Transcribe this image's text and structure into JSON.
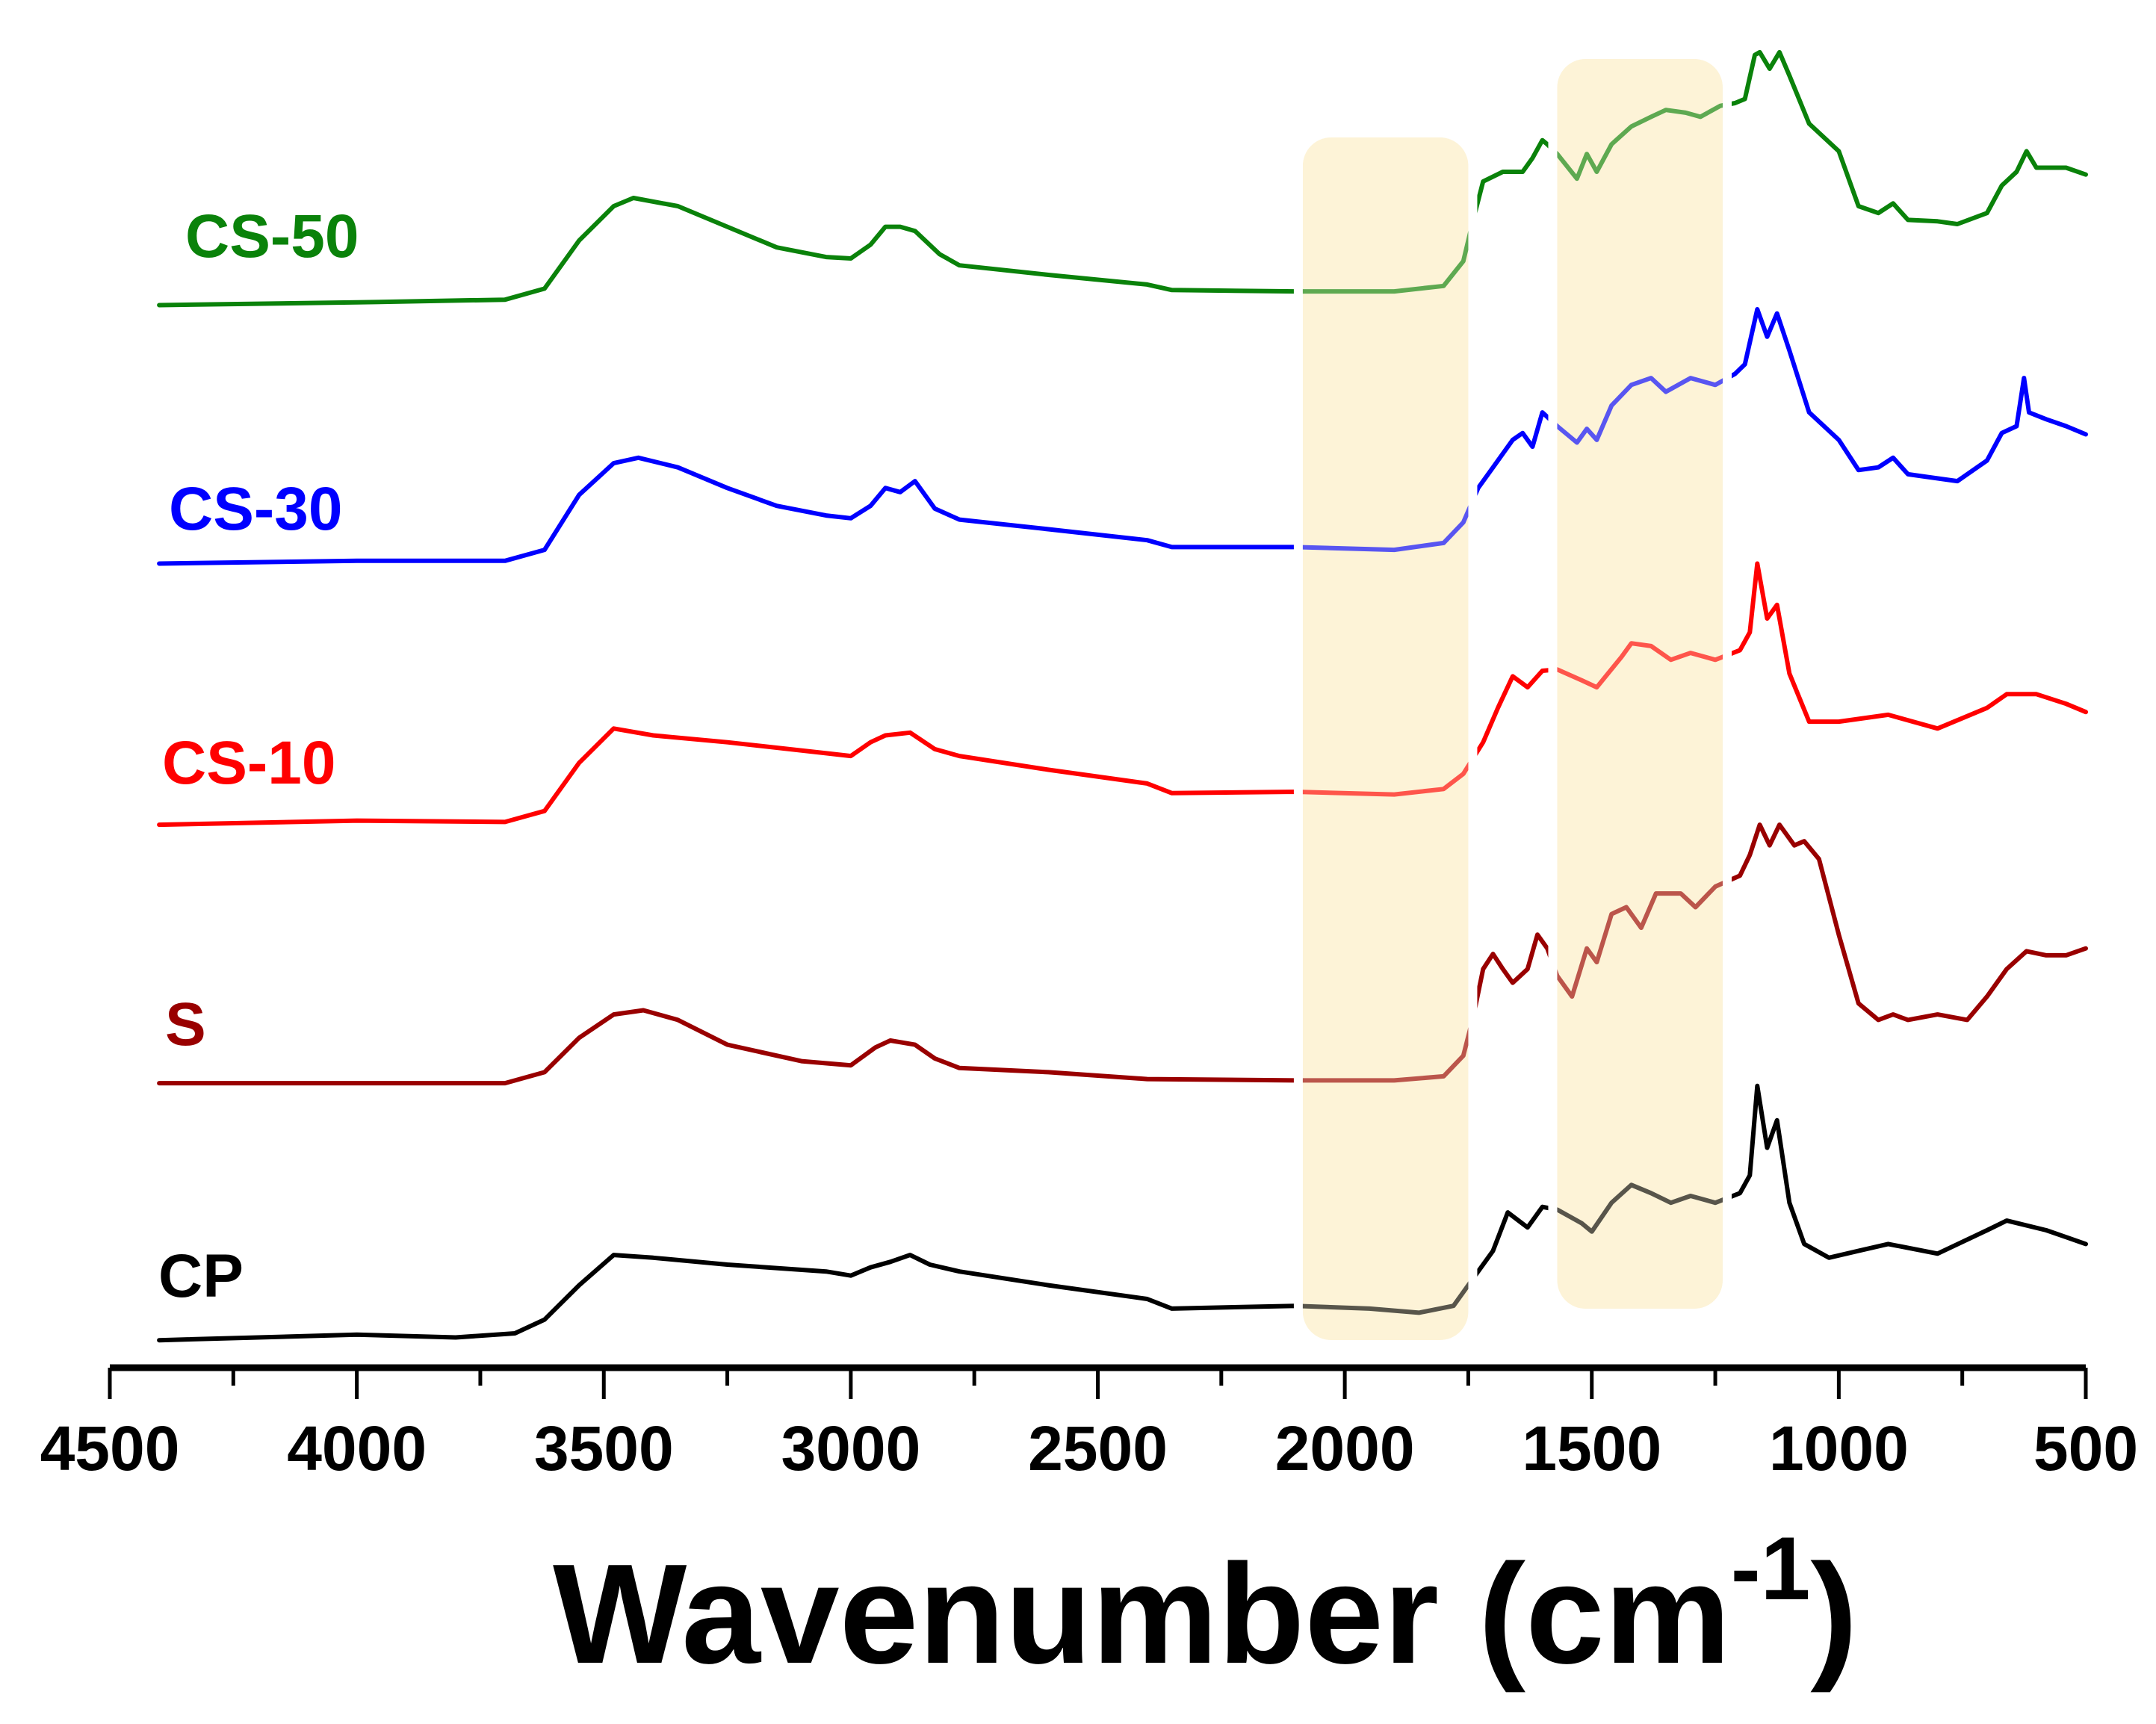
{
  "chart_data": {
    "type": "line",
    "title": "",
    "xlabel": "Wavenumber (cm",
    "xlabel_sup": "-1",
    "xlabel_close": ")",
    "ylabel": "",
    "xlim": [
      4500,
      500
    ],
    "ylim": [
      5,
      1000
    ],
    "x_ticks": [
      "4500",
      "4000",
      "3500",
      "3000",
      "2500",
      "2000",
      "1500",
      "1000",
      "500"
    ],
    "x_tick_values": [
      4500,
      4000,
      3500,
      3000,
      2500,
      2000,
      1500,
      1000,
      500
    ],
    "x_minor_ticks": [
      4250,
      3750,
      3250,
      2750,
      2250,
      1750,
      1250,
      750
    ],
    "grid": false,
    "highlight_regions": [
      {
        "from": 2085,
        "to": 1750,
        "color": "#fdf3d8"
      },
      {
        "from": 1570,
        "to": 1235,
        "color": "#fdf3d8"
      }
    ],
    "series": [
      {
        "name": "CS-50",
        "color": "#0a820a",
        "points": [
          [
            4400,
            778
          ],
          [
            4000,
            780
          ],
          [
            3700,
            782
          ],
          [
            3620,
            790
          ],
          [
            3550,
            825
          ],
          [
            3480,
            850
          ],
          [
            3440,
            856
          ],
          [
            3350,
            850
          ],
          [
            3250,
            835
          ],
          [
            3150,
            820
          ],
          [
            3050,
            813
          ],
          [
            3000,
            812
          ],
          [
            2960,
            822
          ],
          [
            2930,
            835
          ],
          [
            2900,
            835
          ],
          [
            2870,
            832
          ],
          [
            2820,
            815
          ],
          [
            2780,
            807
          ],
          [
            2600,
            800
          ],
          [
            2400,
            793
          ],
          [
            2350,
            789
          ],
          [
            2100,
            788
          ],
          [
            1900,
            788
          ],
          [
            1800,
            792
          ],
          [
            1760,
            810
          ],
          [
            1740,
            840
          ],
          [
            1720,
            868
          ],
          [
            1680,
            875
          ],
          [
            1640,
            875
          ],
          [
            1620,
            885
          ],
          [
            1600,
            898
          ],
          [
            1590,
            895
          ],
          [
            1570,
            888
          ],
          [
            1530,
            870
          ],
          [
            1510,
            888
          ],
          [
            1490,
            875
          ],
          [
            1460,
            895
          ],
          [
            1420,
            908
          ],
          [
            1380,
            915
          ],
          [
            1350,
            920
          ],
          [
            1310,
            918
          ],
          [
            1280,
            915
          ],
          [
            1240,
            923
          ],
          [
            1210,
            925
          ],
          [
            1190,
            928
          ],
          [
            1170,
            960
          ],
          [
            1160,
            962
          ],
          [
            1140,
            950
          ],
          [
            1120,
            962
          ],
          [
            1100,
            945
          ],
          [
            1060,
            910
          ],
          [
            1000,
            890
          ],
          [
            960,
            850
          ],
          [
            920,
            845
          ],
          [
            890,
            852
          ],
          [
            860,
            840
          ],
          [
            800,
            839
          ],
          [
            760,
            837
          ],
          [
            700,
            845
          ],
          [
            670,
            865
          ],
          [
            640,
            875
          ],
          [
            620,
            890
          ],
          [
            600,
            878
          ],
          [
            540,
            878
          ],
          [
            500,
            873
          ]
        ]
      },
      {
        "name": "CS-30",
        "color": "#0000ff",
        "points": [
          [
            4400,
            590
          ],
          [
            4000,
            592
          ],
          [
            3700,
            592
          ],
          [
            3620,
            600
          ],
          [
            3550,
            640
          ],
          [
            3480,
            663
          ],
          [
            3430,
            667
          ],
          [
            3350,
            660
          ],
          [
            3250,
            645
          ],
          [
            3150,
            632
          ],
          [
            3050,
            625
          ],
          [
            3000,
            623
          ],
          [
            2960,
            632
          ],
          [
            2930,
            645
          ],
          [
            2900,
            642
          ],
          [
            2870,
            650
          ],
          [
            2830,
            630
          ],
          [
            2780,
            622
          ],
          [
            2600,
            615
          ],
          [
            2400,
            607
          ],
          [
            2350,
            602
          ],
          [
            2100,
            602
          ],
          [
            1900,
            600
          ],
          [
            1800,
            605
          ],
          [
            1760,
            620
          ],
          [
            1730,
            645
          ],
          [
            1700,
            660
          ],
          [
            1660,
            680
          ],
          [
            1640,
            685
          ],
          [
            1620,
            675
          ],
          [
            1600,
            700
          ],
          [
            1570,
            690
          ],
          [
            1530,
            678
          ],
          [
            1510,
            688
          ],
          [
            1490,
            680
          ],
          [
            1460,
            705
          ],
          [
            1420,
            720
          ],
          [
            1380,
            725
          ],
          [
            1350,
            715
          ],
          [
            1300,
            725
          ],
          [
            1250,
            720
          ],
          [
            1210,
            728
          ],
          [
            1190,
            735
          ],
          [
            1165,
            775
          ],
          [
            1145,
            755
          ],
          [
            1125,
            772
          ],
          [
            1100,
            745
          ],
          [
            1060,
            700
          ],
          [
            1000,
            680
          ],
          [
            960,
            658
          ],
          [
            920,
            660
          ],
          [
            890,
            667
          ],
          [
            860,
            655
          ],
          [
            760,
            650
          ],
          [
            700,
            665
          ],
          [
            670,
            685
          ],
          [
            640,
            690
          ],
          [
            625,
            725
          ],
          [
            615,
            700
          ],
          [
            580,
            695
          ],
          [
            540,
            690
          ],
          [
            500,
            684
          ]
        ]
      },
      {
        "name": "CS-10",
        "color": "#ff0000",
        "points": [
          [
            4400,
            400
          ],
          [
            4000,
            403
          ],
          [
            3700,
            402
          ],
          [
            3620,
            410
          ],
          [
            3550,
            445
          ],
          [
            3480,
            470
          ],
          [
            3400,
            465
          ],
          [
            3250,
            460
          ],
          [
            3050,
            452
          ],
          [
            3000,
            450
          ],
          [
            2960,
            460
          ],
          [
            2930,
            465
          ],
          [
            2880,
            467
          ],
          [
            2830,
            455
          ],
          [
            2780,
            450
          ],
          [
            2600,
            440
          ],
          [
            2400,
            430
          ],
          [
            2350,
            423
          ],
          [
            2100,
            424
          ],
          [
            1900,
            422
          ],
          [
            1800,
            426
          ],
          [
            1760,
            437
          ],
          [
            1720,
            460
          ],
          [
            1690,
            485
          ],
          [
            1660,
            508
          ],
          [
            1630,
            500
          ],
          [
            1600,
            512
          ],
          [
            1570,
            513
          ],
          [
            1520,
            505
          ],
          [
            1490,
            500
          ],
          [
            1440,
            522
          ],
          [
            1420,
            532
          ],
          [
            1380,
            530
          ],
          [
            1340,
            520
          ],
          [
            1300,
            525
          ],
          [
            1250,
            520
          ],
          [
            1200,
            527
          ],
          [
            1180,
            540
          ],
          [
            1165,
            590
          ],
          [
            1145,
            550
          ],
          [
            1125,
            560
          ],
          [
            1100,
            510
          ],
          [
            1060,
            475
          ],
          [
            1000,
            475
          ],
          [
            900,
            480
          ],
          [
            800,
            470
          ],
          [
            700,
            485
          ],
          [
            660,
            495
          ],
          [
            600,
            495
          ],
          [
            540,
            488
          ],
          [
            500,
            482
          ]
        ]
      },
      {
        "name": "S",
        "color": "#990000",
        "points": [
          [
            4400,
            212
          ],
          [
            3700,
            212
          ],
          [
            3620,
            220
          ],
          [
            3550,
            245
          ],
          [
            3480,
            262
          ],
          [
            3420,
            265
          ],
          [
            3350,
            258
          ],
          [
            3250,
            240
          ],
          [
            3100,
            228
          ],
          [
            3000,
            225
          ],
          [
            2950,
            238
          ],
          [
            2920,
            243
          ],
          [
            2870,
            240
          ],
          [
            2830,
            230
          ],
          [
            2780,
            223
          ],
          [
            2600,
            220
          ],
          [
            2400,
            215
          ],
          [
            2100,
            214
          ],
          [
            1900,
            214
          ],
          [
            1800,
            217
          ],
          [
            1760,
            232
          ],
          [
            1740,
            260
          ],
          [
            1720,
            295
          ],
          [
            1700,
            306
          ],
          [
            1680,
            295
          ],
          [
            1660,
            285
          ],
          [
            1630,
            295
          ],
          [
            1610,
            320
          ],
          [
            1590,
            310
          ],
          [
            1570,
            290
          ],
          [
            1540,
            275
          ],
          [
            1510,
            310
          ],
          [
            1490,
            300
          ],
          [
            1460,
            335
          ],
          [
            1430,
            340
          ],
          [
            1400,
            325
          ],
          [
            1370,
            350
          ],
          [
            1320,
            350
          ],
          [
            1290,
            340
          ],
          [
            1250,
            355
          ],
          [
            1200,
            363
          ],
          [
            1180,
            378
          ],
          [
            1160,
            400
          ],
          [
            1140,
            385
          ],
          [
            1120,
            400
          ],
          [
            1090,
            385
          ],
          [
            1070,
            388
          ],
          [
            1040,
            375
          ],
          [
            1000,
            320
          ],
          [
            960,
            270
          ],
          [
            920,
            258
          ],
          [
            890,
            262
          ],
          [
            860,
            258
          ],
          [
            800,
            262
          ],
          [
            740,
            258
          ],
          [
            700,
            275
          ],
          [
            660,
            295
          ],
          [
            620,
            308
          ],
          [
            580,
            305
          ],
          [
            540,
            305
          ],
          [
            500,
            310
          ]
        ]
      },
      {
        "name": "CP",
        "color": "#000000",
        "points": [
          [
            4400,
            25
          ],
          [
            4000,
            29
          ],
          [
            3800,
            27
          ],
          [
            3680,
            30
          ],
          [
            3620,
            40
          ],
          [
            3550,
            65
          ],
          [
            3480,
            87
          ],
          [
            3400,
            85
          ],
          [
            3250,
            80
          ],
          [
            3050,
            75
          ],
          [
            3000,
            72
          ],
          [
            2960,
            78
          ],
          [
            2920,
            82
          ],
          [
            2880,
            87
          ],
          [
            2840,
            80
          ],
          [
            2780,
            75
          ],
          [
            2600,
            65
          ],
          [
            2400,
            55
          ],
          [
            2350,
            48
          ],
          [
            2100,
            50
          ],
          [
            1950,
            48
          ],
          [
            1850,
            45
          ],
          [
            1780,
            50
          ],
          [
            1740,
            70
          ],
          [
            1700,
            90
          ],
          [
            1670,
            118
          ],
          [
            1630,
            107
          ],
          [
            1600,
            122
          ],
          [
            1570,
            120
          ],
          [
            1520,
            110
          ],
          [
            1500,
            104
          ],
          [
            1460,
            125
          ],
          [
            1420,
            138
          ],
          [
            1380,
            132
          ],
          [
            1340,
            125
          ],
          [
            1300,
            130
          ],
          [
            1250,
            125
          ],
          [
            1200,
            132
          ],
          [
            1180,
            145
          ],
          [
            1165,
            210
          ],
          [
            1145,
            165
          ],
          [
            1125,
            185
          ],
          [
            1100,
            125
          ],
          [
            1070,
            95
          ],
          [
            1020,
            85
          ],
          [
            960,
            90
          ],
          [
            900,
            95
          ],
          [
            800,
            88
          ],
          [
            700,
            105
          ],
          [
            660,
            112
          ],
          [
            580,
            105
          ],
          [
            540,
            100
          ],
          [
            500,
            95
          ]
        ]
      }
    ]
  }
}
